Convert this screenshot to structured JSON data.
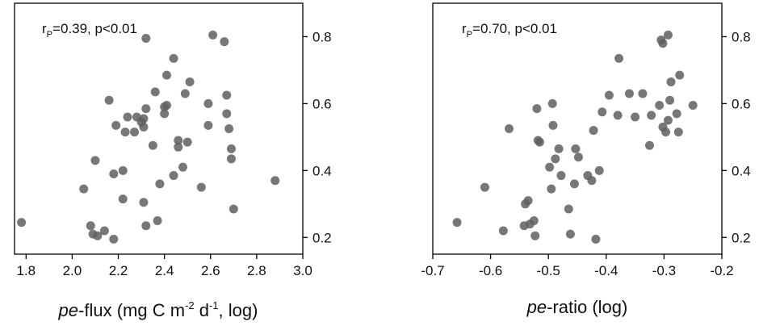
{
  "chart_data": [
    {
      "type": "scatter",
      "annotation": {
        "prefix": "r",
        "subscript": "P",
        "text": "=0.39, p<0.01"
      },
      "xlabel": {
        "italic": "pe",
        "text": "-flux (mg C m",
        "sup1": "-2",
        "mid": " d",
        "sup2": "-1",
        "end": ", log)"
      },
      "ylabel": "",
      "xlim": [
        1.75,
        3.0
      ],
      "ylim": [
        0.15,
        0.9
      ],
      "x_ticks": [
        1.8,
        2.0,
        2.2,
        2.4,
        2.6,
        2.8,
        3.0
      ],
      "x_tick_labels": [
        "1.8",
        "2.0",
        "2.2",
        "2.4",
        "2.6",
        "2.8",
        "3.0"
      ],
      "y_ticks": [
        0.2,
        0.4,
        0.6,
        0.8
      ],
      "y_tick_labels": [
        "0.2",
        "0.4",
        "0.6",
        "0.8"
      ],
      "y_axis_side": "right",
      "grid": false,
      "points": [
        {
          "x": 1.78,
          "y": 0.245
        },
        {
          "x": 2.05,
          "y": 0.345
        },
        {
          "x": 2.08,
          "y": 0.235
        },
        {
          "x": 2.09,
          "y": 0.21
        },
        {
          "x": 2.1,
          "y": 0.43
        },
        {
          "x": 2.11,
          "y": 0.205
        },
        {
          "x": 2.14,
          "y": 0.22
        },
        {
          "x": 2.16,
          "y": 0.61
        },
        {
          "x": 2.18,
          "y": 0.195
        },
        {
          "x": 2.18,
          "y": 0.39
        },
        {
          "x": 2.19,
          "y": 0.535
        },
        {
          "x": 2.22,
          "y": 0.4
        },
        {
          "x": 2.22,
          "y": 0.315
        },
        {
          "x": 2.23,
          "y": 0.515
        },
        {
          "x": 2.24,
          "y": 0.56
        },
        {
          "x": 2.27,
          "y": 0.515
        },
        {
          "x": 2.28,
          "y": 0.56
        },
        {
          "x": 2.3,
          "y": 0.545
        },
        {
          "x": 2.31,
          "y": 0.53
        },
        {
          "x": 2.31,
          "y": 0.555
        },
        {
          "x": 2.31,
          "y": 0.305
        },
        {
          "x": 2.32,
          "y": 0.585
        },
        {
          "x": 2.32,
          "y": 0.235
        },
        {
          "x": 2.32,
          "y": 0.795
        },
        {
          "x": 2.35,
          "y": 0.475
        },
        {
          "x": 2.36,
          "y": 0.635
        },
        {
          "x": 2.37,
          "y": 0.25
        },
        {
          "x": 2.38,
          "y": 0.36
        },
        {
          "x": 2.4,
          "y": 0.59
        },
        {
          "x": 2.4,
          "y": 0.57
        },
        {
          "x": 2.41,
          "y": 0.595
        },
        {
          "x": 2.41,
          "y": 0.685
        },
        {
          "x": 2.44,
          "y": 0.385
        },
        {
          "x": 2.44,
          "y": 0.735
        },
        {
          "x": 2.46,
          "y": 0.47
        },
        {
          "x": 2.46,
          "y": 0.49
        },
        {
          "x": 2.48,
          "y": 0.41
        },
        {
          "x": 2.49,
          "y": 0.63
        },
        {
          "x": 2.5,
          "y": 0.485
        },
        {
          "x": 2.51,
          "y": 0.665
        },
        {
          "x": 2.56,
          "y": 0.35
        },
        {
          "x": 2.59,
          "y": 0.6
        },
        {
          "x": 2.59,
          "y": 0.535
        },
        {
          "x": 2.61,
          "y": 0.805
        },
        {
          "x": 2.66,
          "y": 0.785
        },
        {
          "x": 2.67,
          "y": 0.625
        },
        {
          "x": 2.67,
          "y": 0.57
        },
        {
          "x": 2.68,
          "y": 0.525
        },
        {
          "x": 2.69,
          "y": 0.435
        },
        {
          "x": 2.69,
          "y": 0.465
        },
        {
          "x": 2.7,
          "y": 0.285
        },
        {
          "x": 2.88,
          "y": 0.37
        }
      ]
    },
    {
      "type": "scatter",
      "annotation": {
        "prefix": "r",
        "subscript": "P",
        "text": "=0.70, p<0.01"
      },
      "xlabel": {
        "italic": "pe",
        "text": "-ratio (log)"
      },
      "ylabel": "",
      "xlim": [
        -0.7,
        -0.2
      ],
      "ylim": [
        0.15,
        0.9
      ],
      "x_ticks": [
        -0.7,
        -0.6,
        -0.5,
        -0.4,
        -0.3,
        -0.2
      ],
      "x_tick_labels": [
        "-0.7",
        "-0.6",
        "-0.5",
        "-0.4",
        "-0.3",
        "-0.2"
      ],
      "y_ticks": [
        0.2,
        0.4,
        0.6,
        0.8
      ],
      "y_tick_labels": [
        "0.2",
        "0.4",
        "0.6",
        "0.8"
      ],
      "y_axis_side": "right",
      "grid": false,
      "points": [
        {
          "x": -0.658,
          "y": 0.245
        },
        {
          "x": -0.61,
          "y": 0.35
        },
        {
          "x": -0.578,
          "y": 0.22
        },
        {
          "x": -0.568,
          "y": 0.525
        },
        {
          "x": -0.542,
          "y": 0.235
        },
        {
          "x": -0.54,
          "y": 0.3
        },
        {
          "x": -0.535,
          "y": 0.31
        },
        {
          "x": -0.532,
          "y": 0.24
        },
        {
          "x": -0.525,
          "y": 0.25
        },
        {
          "x": -0.523,
          "y": 0.205
        },
        {
          "x": -0.52,
          "y": 0.585
        },
        {
          "x": -0.518,
          "y": 0.49
        },
        {
          "x": -0.515,
          "y": 0.485
        },
        {
          "x": -0.498,
          "y": 0.41
        },
        {
          "x": -0.495,
          "y": 0.345
        },
        {
          "x": -0.493,
          "y": 0.6
        },
        {
          "x": -0.492,
          "y": 0.535
        },
        {
          "x": -0.488,
          "y": 0.435
        },
        {
          "x": -0.482,
          "y": 0.465
        },
        {
          "x": -0.478,
          "y": 0.385
        },
        {
          "x": -0.465,
          "y": 0.285
        },
        {
          "x": -0.462,
          "y": 0.21
        },
        {
          "x": -0.455,
          "y": 0.36
        },
        {
          "x": -0.453,
          "y": 0.465
        },
        {
          "x": -0.448,
          "y": 0.44
        },
        {
          "x": -0.432,
          "y": 0.385
        },
        {
          "x": -0.425,
          "y": 0.37
        },
        {
          "x": -0.422,
          "y": 0.52
        },
        {
          "x": -0.418,
          "y": 0.195
        },
        {
          "x": -0.412,
          "y": 0.4
        },
        {
          "x": -0.407,
          "y": 0.575
        },
        {
          "x": -0.395,
          "y": 0.625
        },
        {
          "x": -0.38,
          "y": 0.565
        },
        {
          "x": -0.378,
          "y": 0.735
        },
        {
          "x": -0.36,
          "y": 0.63
        },
        {
          "x": -0.35,
          "y": 0.56
        },
        {
          "x": -0.337,
          "y": 0.63
        },
        {
          "x": -0.325,
          "y": 0.475
        },
        {
          "x": -0.322,
          "y": 0.565
        },
        {
          "x": -0.308,
          "y": 0.595
        },
        {
          "x": -0.305,
          "y": 0.79
        },
        {
          "x": -0.302,
          "y": 0.78
        },
        {
          "x": -0.302,
          "y": 0.53
        },
        {
          "x": -0.297,
          "y": 0.515
        },
        {
          "x": -0.293,
          "y": 0.805
        },
        {
          "x": -0.293,
          "y": 0.55
        },
        {
          "x": -0.29,
          "y": 0.61
        },
        {
          "x": -0.288,
          "y": 0.665
        },
        {
          "x": -0.278,
          "y": 0.57
        },
        {
          "x": -0.275,
          "y": 0.515
        },
        {
          "x": -0.273,
          "y": 0.685
        },
        {
          "x": -0.25,
          "y": 0.595
        }
      ]
    }
  ]
}
